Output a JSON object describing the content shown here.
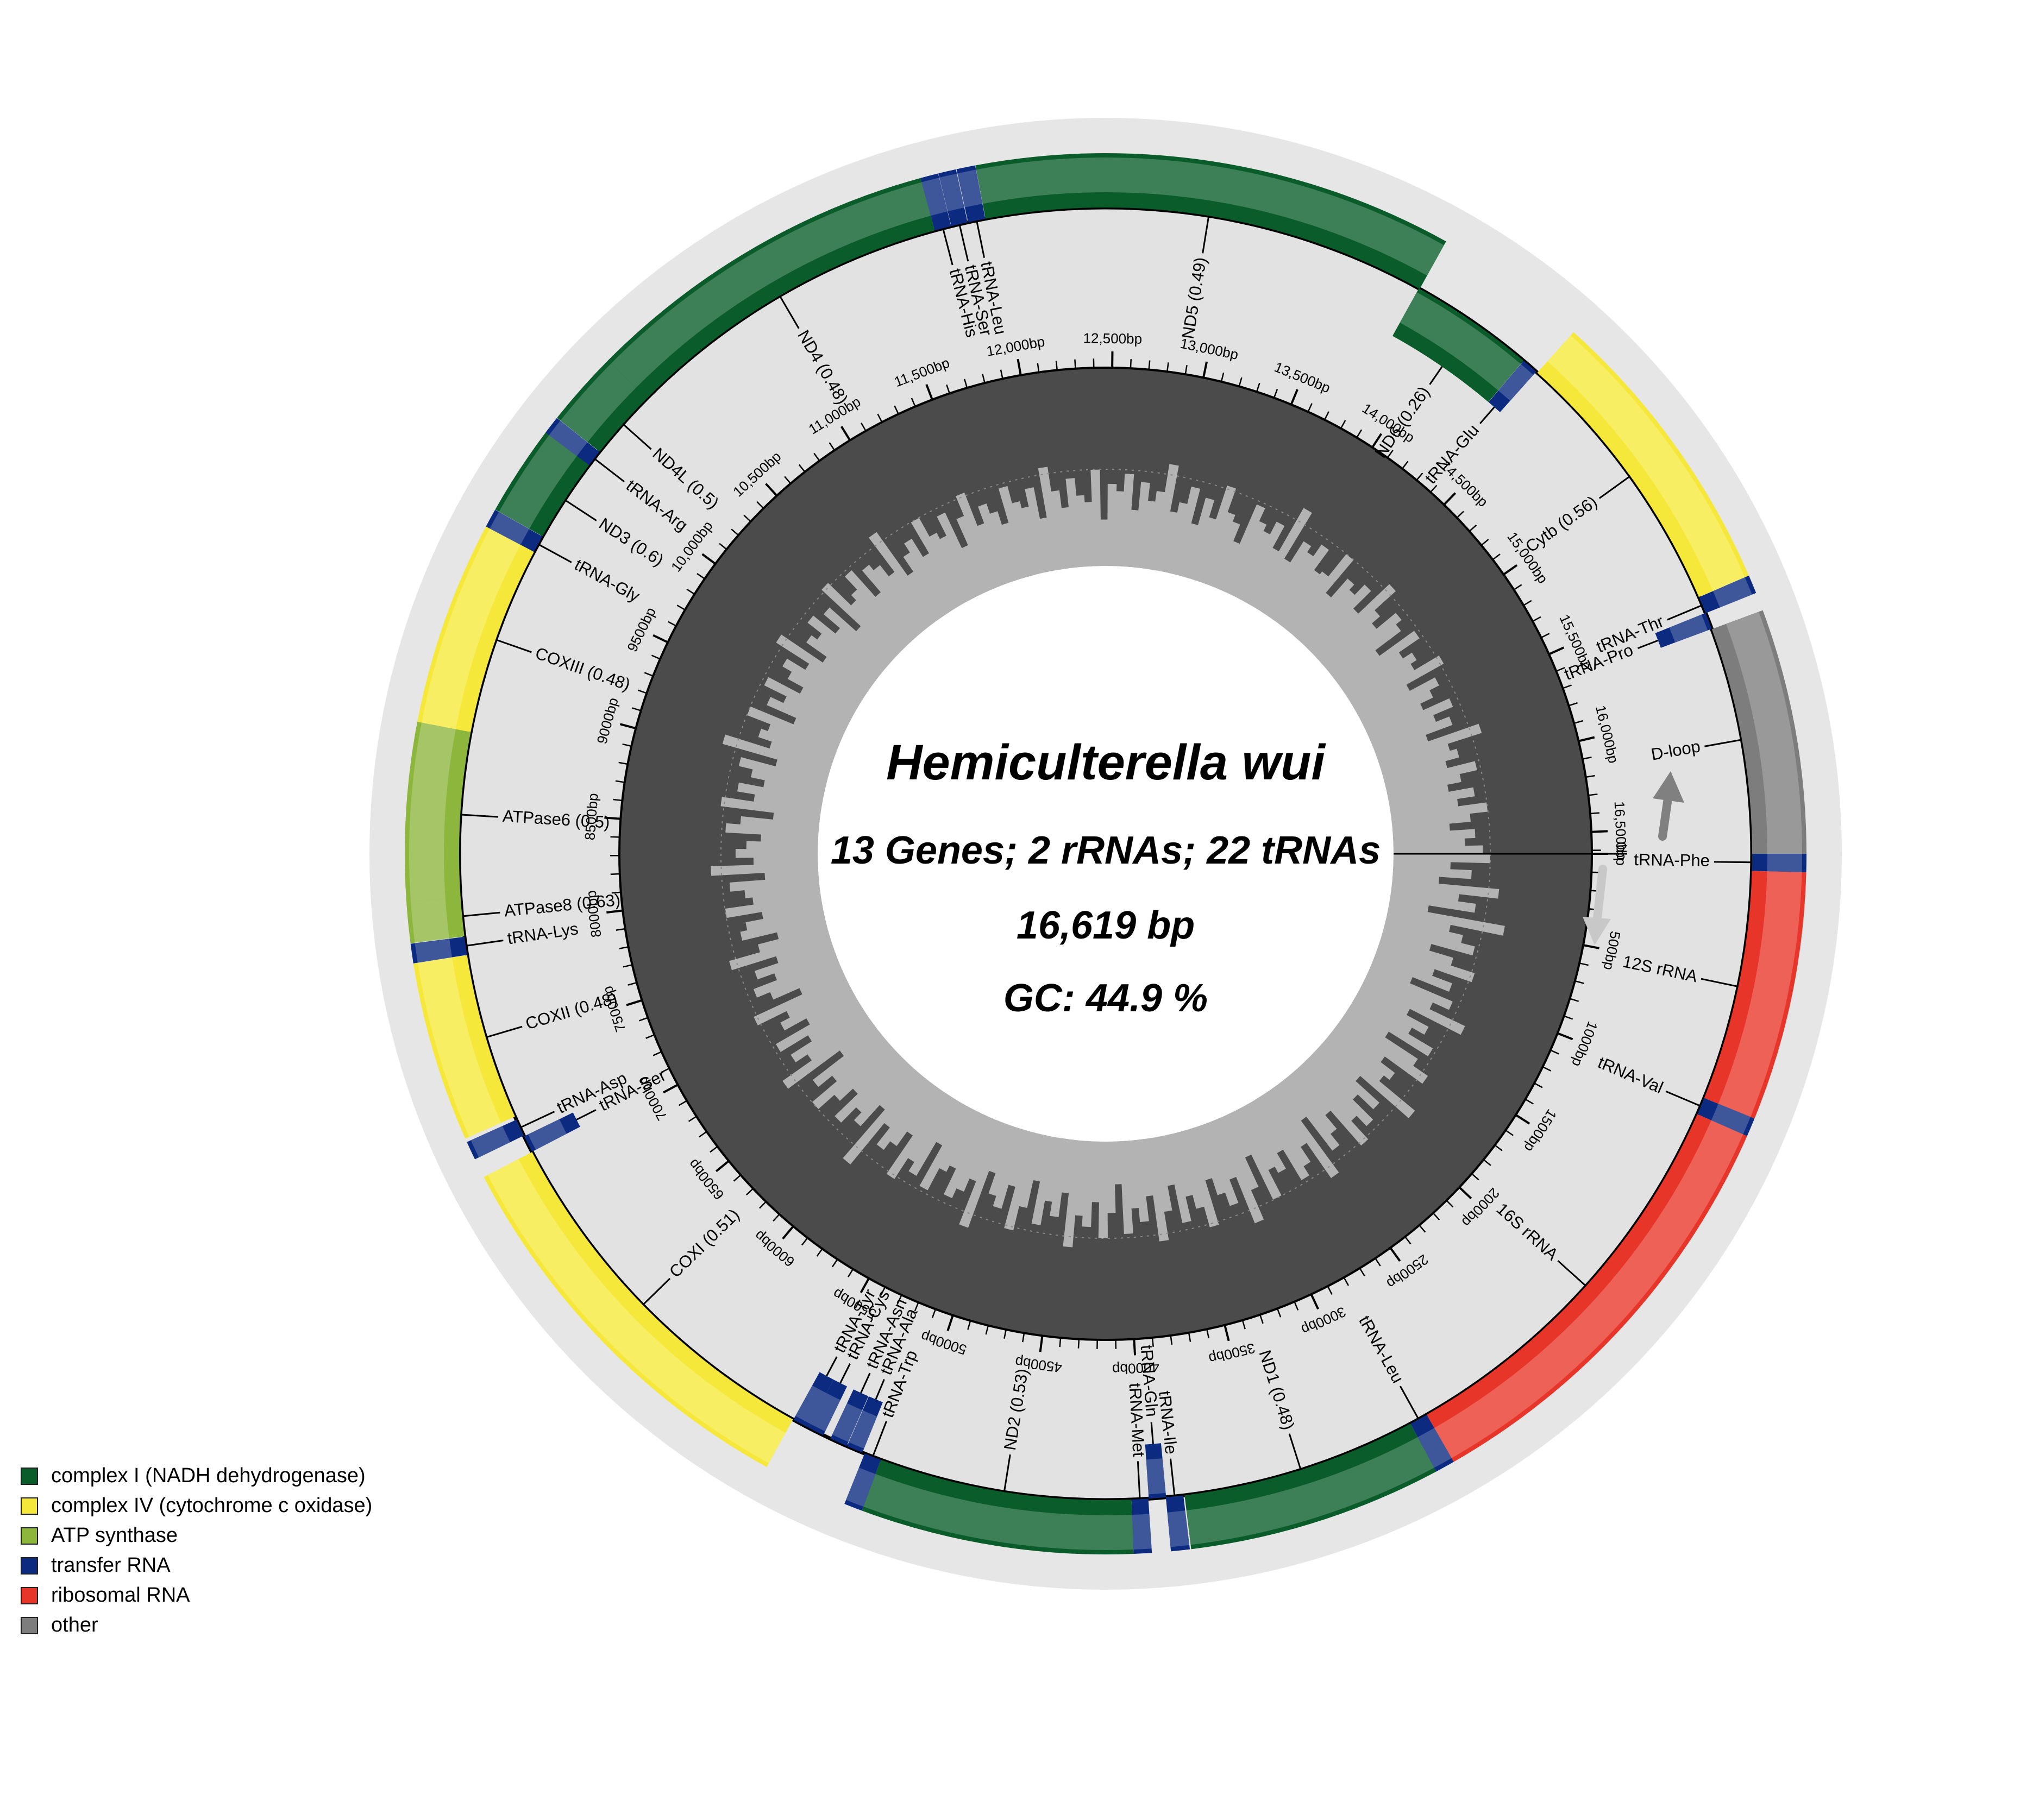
{
  "title": "Hemiculterella wui",
  "stats": {
    "genes_line": "13 Genes; 2 rRNAs; 22 tRNAs",
    "length_line": "16,619 bp",
    "gc_line": "GC: 44.9 %"
  },
  "genome_length": 16619,
  "colors": {
    "complex_I": "#0a5c2a",
    "complex_IV": "#f5e83a",
    "atp": "#8db63c",
    "trna": "#0b2a80",
    "rrna": "#e8352a",
    "other": "#7d7d7d"
  },
  "legend": [
    {
      "label": "complex I (NADH dehydrogenase)",
      "color": "#0a5c2a"
    },
    {
      "label": "complex IV (cytochrome c oxidase)",
      "color": "#f5e83a"
    },
    {
      "label": "ATP synthase",
      "color": "#8db63c"
    },
    {
      "label": "transfer RNA",
      "color": "#0b2a80"
    },
    {
      "label": "ribosomal RNA",
      "color": "#e8352a"
    },
    {
      "label": "other",
      "color": "#7d7d7d"
    }
  ],
  "features": [
    {
      "label": "tRNA-Phe",
      "start": 0,
      "end": 70,
      "type": "trna",
      "strand": "+"
    },
    {
      "label": "12S rRNA",
      "start": 70,
      "end": 1025,
      "type": "rrna",
      "strand": "+"
    },
    {
      "label": "tRNA-Val",
      "start": 1025,
      "end": 1097,
      "type": "trna",
      "strand": "+"
    },
    {
      "label": "16S rRNA",
      "start": 1097,
      "end": 2780,
      "type": "rrna",
      "strand": "+"
    },
    {
      "label": "tRNA-Leu",
      "start": 2780,
      "end": 2856,
      "type": "trna",
      "strand": "+"
    },
    {
      "label": "ND1 (0.48)",
      "start": 2856,
      "end": 3831,
      "type": "complex_I",
      "strand": "+"
    },
    {
      "label": "tRNA-Ile",
      "start": 3836,
      "end": 3908,
      "type": "trna",
      "strand": "+"
    },
    {
      "label": "tRNA-Gln",
      "start": 3907,
      "end": 3978,
      "type": "trna",
      "strand": "-"
    },
    {
      "label": "tRNA-Met",
      "start": 3980,
      "end": 4049,
      "type": "trna",
      "strand": "+"
    },
    {
      "label": "ND2 (0.53)",
      "start": 4049,
      "end": 5094,
      "type": "complex_I",
      "strand": "+"
    },
    {
      "label": "tRNA-Trp",
      "start": 5094,
      "end": 5165,
      "type": "trna",
      "strand": "+"
    },
    {
      "label": "tRNA-Ala",
      "start": 5175,
      "end": 5243,
      "type": "trna",
      "strand": "-"
    },
    {
      "label": "tRNA-Asn",
      "start": 5245,
      "end": 5318,
      "type": "trna",
      "strand": "-"
    },
    {
      "label": "tRNA-Cys",
      "start": 5350,
      "end": 5417,
      "type": "trna",
      "strand": "-"
    },
    {
      "label": "tRNA-Tyr",
      "start": 5417,
      "end": 5488,
      "type": "trna",
      "strand": "-"
    },
    {
      "label": "COXI (0.51)",
      "start": 5490,
      "end": 7041,
      "type": "complex_IV",
      "strand": "+"
    },
    {
      "label": "tRNA-Ser",
      "start": 7042,
      "end": 7113,
      "type": "trna",
      "strand": "-"
    },
    {
      "label": "tRNA-Asp",
      "start": 7116,
      "end": 7188,
      "type": "trna",
      "strand": "+"
    },
    {
      "label": "COXII (0.48)",
      "start": 7202,
      "end": 7893,
      "type": "complex_IV",
      "strand": "+"
    },
    {
      "label": "tRNA-Lys",
      "start": 7894,
      "end": 7969,
      "type": "trna",
      "strand": "+"
    },
    {
      "label": "ATPase8 (0.63)",
      "start": 7971,
      "end": 8136,
      "type": "atp",
      "strand": "+"
    },
    {
      "label": "ATPase6 (0.5)",
      "start": 8129,
      "end": 8811,
      "type": "atp",
      "strand": "+"
    },
    {
      "label": "COXIII (0.48)",
      "start": 8811,
      "end": 9595,
      "type": "complex_IV",
      "strand": "+"
    },
    {
      "label": "tRNA-Gly",
      "start": 9595,
      "end": 9667,
      "type": "trna",
      "strand": "+"
    },
    {
      "label": "ND3 (0.6)",
      "start": 9668,
      "end": 10017,
      "type": "complex_I",
      "strand": "+"
    },
    {
      "label": "tRNA-Arg",
      "start": 10016,
      "end": 10085,
      "type": "trna",
      "strand": "+"
    },
    {
      "label": "ND4L (0.5)",
      "start": 10086,
      "end": 10382,
      "type": "complex_I",
      "strand": "+"
    },
    {
      "label": "ND4 (0.48)",
      "start": 10376,
      "end": 11757,
      "type": "complex_I",
      "strand": "+"
    },
    {
      "label": "tRNA-His",
      "start": 11757,
      "end": 11826,
      "type": "trna",
      "strand": "+"
    },
    {
      "label": "tRNA-Ser",
      "start": 11827,
      "end": 11895,
      "type": "trna",
      "strand": "+"
    },
    {
      "label": "tRNA-Leu",
      "start": 11897,
      "end": 11969,
      "type": "trna",
      "strand": "+"
    },
    {
      "label": "ND5 (0.49)",
      "start": 11970,
      "end": 13806,
      "type": "complex_I",
      "strand": "+"
    },
    {
      "label": "ND6 (0.26)",
      "start": 13802,
      "end": 14323,
      "type": "complex_I",
      "strand": "-"
    },
    {
      "label": "tRNA-Glu",
      "start": 14324,
      "end": 14392,
      "type": "trna",
      "strand": "-"
    },
    {
      "label": "Cytb (0.56)",
      "start": 14398,
      "end": 15538,
      "type": "complex_IV",
      "strand": "+"
    },
    {
      "label": "tRNA-Thr",
      "start": 15539,
      "end": 15610,
      "type": "trna",
      "strand": "+"
    },
    {
      "label": "tRNA-Pro",
      "start": 15609,
      "end": 15679,
      "type": "trna",
      "strand": "-"
    },
    {
      "label": "D-loop",
      "start": 15680,
      "end": 16619,
      "type": "other",
      "strand": "+"
    }
  ],
  "ticks": [
    "0bp",
    "500bp",
    "1000bp",
    "1500bp",
    "2000bp",
    "2500bp",
    "3000bp",
    "3500bp",
    "4000bp",
    "4500bp",
    "5000bp",
    "5500bp",
    "6000bp",
    "6500bp",
    "7000bp",
    "7500bp",
    "8000bp",
    "8500bp",
    "9000bp",
    "9500bp",
    "10,000bp",
    "10,500bp",
    "11,000bp",
    "11,500bp",
    "12,000bp",
    "12,500bp",
    "13,000bp",
    "13,500bp",
    "14,000bp",
    "14,500bp",
    "15,000bp",
    "15,500bp",
    "16,000bp",
    "16,500bp"
  ],
  "gc_profile": [
    0.52,
    0.41,
    0.47,
    0.38,
    0.55,
    0.44,
    0.49,
    0.36,
    0.58,
    0.43,
    0.47,
    0.51,
    0.39,
    0.46,
    0.53,
    0.42,
    0.48,
    0.37,
    0.5,
    0.45,
    0.56,
    0.4,
    0.47,
    0.43,
    0.51,
    0.38,
    0.49,
    0.54,
    0.41,
    0.46,
    0.44,
    0.57,
    0.39,
    0.48,
    0.42,
    0.5,
    0.46,
    0.53,
    0.4,
    0.45,
    0.49,
    0.37,
    0.55,
    0.43,
    0.48,
    0.51,
    0.41,
    0.46,
    0.44,
    0.52,
    0.38,
    0.47,
    0.56,
    0.42,
    0.49,
    0.45,
    0.4,
    0.53,
    0.47,
    0.43,
    0.5,
    0.39,
    0.46,
    0.54,
    0.41,
    0.48,
    0.44,
    0.51,
    0.37,
    0.45,
    0.52,
    0.42,
    0.49,
    0.46,
    0.55,
    0.4,
    0.47,
    0.43,
    0.5,
    0.38,
    0.46,
    0.53,
    0.41,
    0.48,
    0.45,
    0.39,
    0.56,
    0.43,
    0.47,
    0.5,
    0.42,
    0.44,
    0.51,
    0.38,
    0.49,
    0.46,
    0.53,
    0.4,
    0.45,
    0.48,
    0.42,
    0.57,
    0.39,
    0.47,
    0.44,
    0.5,
    0.41,
    0.46,
    0.52,
    0.43,
    0.48,
    0.37,
    0.55,
    0.45,
    0.49,
    0.42,
    0.51,
    0.4,
    0.47,
    0.44,
    0.53,
    0.38,
    0.46,
    0.5,
    0.43,
    0.48,
    0.41,
    0.54,
    0.45,
    0.39,
    0.49,
    0.47,
    0.42,
    0.52,
    0.44,
    0.46,
    0.5,
    0.4,
    0.55,
    0.43,
    0.48,
    0.45,
    0.41,
    0.51,
    0.47,
    0.38,
    0.53,
    0.44,
    0.49,
    0.42,
    0.46,
    0.5,
    0.4,
    0.56,
    0.43,
    0.47,
    0.45,
    0.52,
    0.39,
    0.48,
    0.44,
    0.51,
    0.41,
    0.46,
    0.49,
    0.43,
    0.54,
    0.4,
    0.47,
    0.45,
    0.5,
    0.42,
    0.48,
    0.38,
    0.53,
    0.44,
    0.46,
    0.51,
    0.41,
    0.49,
    0.47,
    0.43,
    0.55,
    0.4,
    0.45,
    0.48,
    0.42,
    0.52,
    0.46,
    0.44,
    0.5,
    0.39,
    0.47,
    0.53,
    0.43,
    0.48,
    0.45,
    0.41,
    0.51,
    0.46,
    0.44,
    0.49,
    0.4,
    0.54,
    0.47,
    0.42,
    0.5,
    0.45,
    0.43,
    0.52,
    0.38,
    0.48,
    0.46,
    0.51,
    0.41,
    0.49,
    0.44,
    0.47,
    0.55,
    0.42,
    0.45,
    0.5,
    0.4,
    0.48,
    0.43,
    0.53,
    0.46,
    0.44,
    0.39,
    0.51,
    0.47,
    0.45,
    0.49,
    0.42,
    0.56,
    0.41,
    0.48,
    0.46,
    0.5,
    0.43,
    0.44,
    0.52,
    0.4,
    0.47,
    0.45,
    0.49,
    0.42,
    0.54,
    0.46,
    0.43,
    0.5,
    0.48,
    0.39,
    0.51,
    0.44,
    0.47,
    0.45,
    0.53,
    0.41,
    0.49,
    0.46,
    0.42,
    0.5,
    0.44,
    0.48,
    0.4,
    0.55,
    0.45,
    0.47,
    0.43,
    0.51,
    0.46,
    0.42,
    0.49,
    0.44,
    0.52,
    0.47,
    0.41,
    0.48,
    0.45,
    0.5
  ]
}
